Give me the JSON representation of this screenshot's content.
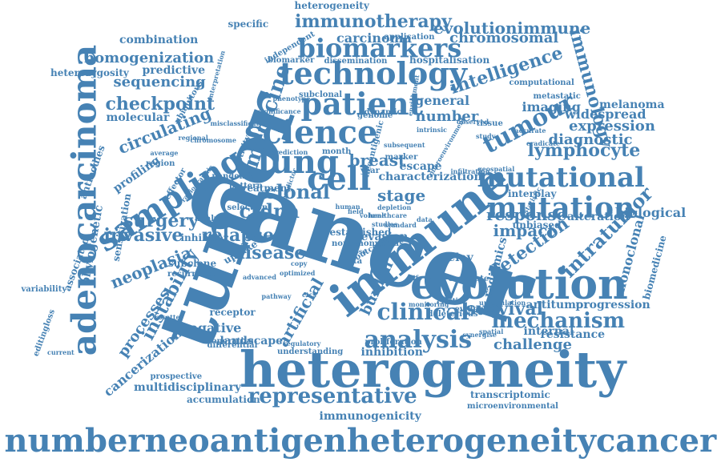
{
  "palette": {
    "word": "#4682b4",
    "background": "#ffffff"
  },
  "words": [
    {
      "text": "cancer",
      "rot": 18
    },
    {
      "text": "heterogeneity",
      "rot": 0
    },
    {
      "text": "tumor",
      "rot": -70
    },
    {
      "text": "immune",
      "rot": -38
    },
    {
      "text": "evolution",
      "rot": 0
    },
    {
      "text": "adenocarcinoma",
      "rot": -90
    },
    {
      "text": "numberneoantigenheterogeneitycancer",
      "rot": 0
    },
    {
      "text": "science",
      "rot": 0
    },
    {
      "text": "patient",
      "rot": 0
    },
    {
      "text": "technology",
      "rot": 0
    },
    {
      "text": "lung",
      "rot": 0
    },
    {
      "text": "cell",
      "rot": 0
    },
    {
      "text": "mutation",
      "rot": 0
    },
    {
      "text": "mutational",
      "rot": 0
    },
    {
      "text": "tumour",
      "rot": -28
    },
    {
      "text": "sampling",
      "rot": -32
    },
    {
      "text": "biomarkers",
      "rot": 0
    },
    {
      "text": "representative",
      "rot": 0
    },
    {
      "text": "analysis",
      "rot": 0
    },
    {
      "text": "clinical",
      "rot": 0
    },
    {
      "text": "immunotherapy",
      "rot": 0
    },
    {
      "text": "instability",
      "rot": -62
    },
    {
      "text": "medicine",
      "rot": -72
    },
    {
      "text": "immunology",
      "rot": 75
    },
    {
      "text": "mechanism",
      "rot": 0
    },
    {
      "text": "survival",
      "rot": 0
    },
    {
      "text": "circulating",
      "rot": -22
    },
    {
      "text": "checkpoint",
      "rot": 0
    },
    {
      "text": "evolutionimmune",
      "rot": 0
    },
    {
      "text": "chromosomal",
      "rot": 0
    },
    {
      "text": "carcinoma",
      "rot": 0
    },
    {
      "text": "homogenization",
      "rot": 0
    },
    {
      "text": "sequencing",
      "rot": 0
    },
    {
      "text": "intelligence",
      "rot": -18
    },
    {
      "text": "invasive",
      "rot": 0
    },
    {
      "text": "relapse",
      "rot": 0
    },
    {
      "text": "ctdna",
      "rot": 0
    },
    {
      "text": "clonal",
      "rot": 0
    },
    {
      "text": "stage",
      "rot": 0
    },
    {
      "text": "breast",
      "rot": 0
    },
    {
      "text": "surgery",
      "rot": 0
    },
    {
      "text": "neoplasia",
      "rot": -22
    },
    {
      "text": "disease",
      "rot": 0
    },
    {
      "text": "response",
      "rot": 0
    },
    {
      "text": "impact",
      "rot": 0
    },
    {
      "text": "detection",
      "rot": -35
    },
    {
      "text": "intratumor",
      "rot": -45
    },
    {
      "text": "lymphocyte",
      "rot": 0
    },
    {
      "text": "diagnostic",
      "rot": 0
    },
    {
      "text": "expression",
      "rot": 0
    },
    {
      "text": "widespread",
      "rot": 0
    },
    {
      "text": "melanoma",
      "rot": 0
    },
    {
      "text": "imaging",
      "rot": 0
    },
    {
      "text": "general",
      "rot": 0
    },
    {
      "text": "number",
      "rot": 0
    },
    {
      "text": "burden",
      "rot": -65
    },
    {
      "text": "artificial",
      "rot": -60
    },
    {
      "text": "processes",
      "rot": -55
    },
    {
      "text": "cancerization",
      "rot": -40
    },
    {
      "text": "negative",
      "rot": 0
    },
    {
      "text": "challenge",
      "rot": 0
    },
    {
      "text": "inhibition",
      "rot": 0
    },
    {
      "text": "resistance",
      "rot": 0
    },
    {
      "text": "internal",
      "rot": 0
    },
    {
      "text": "antitumor",
      "rot": 0
    },
    {
      "text": "progression",
      "rot": 0
    },
    {
      "text": "multidisciplinary",
      "rot": 0
    },
    {
      "text": "accumulation",
      "rot": 0
    },
    {
      "text": "immunogenicity",
      "rot": 0
    },
    {
      "text": "transcriptomic",
      "rot": 0
    },
    {
      "text": "microenvironmental",
      "rot": 0
    },
    {
      "text": "heterogeneity",
      "rot": 0
    },
    {
      "text": "combination",
      "rot": 0
    },
    {
      "text": "predictive",
      "rot": 0
    },
    {
      "text": "heterozygosity",
      "rot": 0
    },
    {
      "text": "molecular",
      "rot": 0
    },
    {
      "text": "profiling",
      "rot": -35
    },
    {
      "text": "antibodies",
      "rot": -70
    },
    {
      "text": "phylogenetic",
      "rot": -80
    },
    {
      "text": "associated",
      "rot": -70
    },
    {
      "text": "sensitization",
      "rot": -80
    },
    {
      "text": "inhibitor",
      "rot": 0
    },
    {
      "text": "subclone",
      "rot": 0
    },
    {
      "text": "recurrence",
      "rot": 0
    },
    {
      "text": "interplay",
      "rot": 0
    },
    {
      "text": "alteration",
      "rot": 0
    },
    {
      "text": "biological",
      "rot": 0
    },
    {
      "text": "monoclonal",
      "rot": -75
    },
    {
      "text": "biomedicine",
      "rot": -75
    },
    {
      "text": "characterization",
      "rot": 0
    },
    {
      "text": "escape",
      "rot": 0
    },
    {
      "text": "evasion",
      "rot": 0
    },
    {
      "text": "delay",
      "rot": 0
    },
    {
      "text": "uptake",
      "rot": -30
    },
    {
      "text": "analyse",
      "rot": 0
    },
    {
      "text": "marker",
      "rot": 0
    },
    {
      "text": "specific",
      "rot": 0
    },
    {
      "text": "independent",
      "rot": -30
    },
    {
      "text": "radiomics",
      "rot": -75
    },
    {
      "text": "emaciate",
      "rot": 0
    },
    {
      "text": "unbiased",
      "rot": 0
    },
    {
      "text": "evidence",
      "rot": 0
    },
    {
      "text": "deleterious",
      "rot": 0
    },
    {
      "text": "landscape",
      "rot": 0
    },
    {
      "text": "receptor",
      "rot": 0
    },
    {
      "text": "operative",
      "rot": 0
    },
    {
      "text": "differential",
      "rot": 0
    },
    {
      "text": "prospective",
      "rot": 0
    },
    {
      "text": "understanding",
      "rot": 0
    },
    {
      "text": "proliferation",
      "rot": 0
    },
    {
      "text": "variability",
      "rot": 0
    },
    {
      "text": "editingloss",
      "rot": -70
    },
    {
      "text": "neoantigenic",
      "rot": -75
    },
    {
      "text": "year",
      "rot": 0
    },
    {
      "text": "month",
      "rot": 0
    },
    {
      "text": "genome",
      "rot": 0
    },
    {
      "text": "dynamic",
      "rot": 0
    },
    {
      "text": "subclonal",
      "rot": 0
    },
    {
      "text": "application",
      "rot": 0
    },
    {
      "text": "biomarker",
      "rot": 0
    },
    {
      "text": "dissemination",
      "rot": 0
    },
    {
      "text": "hospitalisation",
      "rot": 0
    },
    {
      "text": "computational",
      "rot": 0
    },
    {
      "text": "metastatic",
      "rot": 0
    },
    {
      "text": "interpretation",
      "rot": -75
    },
    {
      "text": "ubiquitous",
      "rot": -60
    },
    {
      "text": "misclassification",
      "rot": 0
    },
    {
      "text": "pandemic",
      "rot": 0
    },
    {
      "text": "treatment",
      "rot": 0
    },
    {
      "text": "pattern",
      "rot": 0
    },
    {
      "text": "region",
      "rot": 0
    },
    {
      "text": "effector",
      "rot": -60
    },
    {
      "text": "activity",
      "rot": -70
    },
    {
      "text": "predictor",
      "rot": -70
    },
    {
      "text": "geospatial",
      "rot": 0
    },
    {
      "text": "tissue",
      "rot": 0
    },
    {
      "text": "study",
      "rot": 0
    },
    {
      "text": "selection",
      "rot": 0
    },
    {
      "text": "established",
      "rot": 0
    },
    {
      "text": "nonsynonymous",
      "rot": 0
    },
    {
      "text": "outcome",
      "rot": -30
    },
    {
      "text": "loss",
      "rot": 0
    },
    {
      "text": "meta",
      "rot": 0
    },
    {
      "text": "ratio",
      "rot": 0
    },
    {
      "text": "copy",
      "rot": 0
    },
    {
      "text": "studies",
      "rot": 0
    },
    {
      "text": "volume",
      "rot": 0
    },
    {
      "text": "healthcare",
      "rot": 0
    },
    {
      "text": "field",
      "rot": 0
    },
    {
      "text": "data",
      "rot": 0
    },
    {
      "text": "cxcl",
      "rot": 0
    },
    {
      "text": "ctcs",
      "rot": 0
    },
    {
      "text": "life",
      "rot": 0
    },
    {
      "text": "spatial",
      "rot": 0
    },
    {
      "text": "standard",
      "rot": 0
    },
    {
      "text": "depletion",
      "rot": 0
    },
    {
      "text": "statistic",
      "rot": -60
    },
    {
      "text": "infiltrating",
      "rot": 0
    },
    {
      "text": "synergise",
      "rot": 0
    },
    {
      "text": "advanced",
      "rot": 0
    },
    {
      "text": "optimized",
      "rot": 0
    },
    {
      "text": "rosette",
      "rot": 0
    },
    {
      "text": "current",
      "rot": 0
    },
    {
      "text": "human",
      "rot": 0
    },
    {
      "text": "subsequent",
      "rot": 0
    },
    {
      "text": "prediction",
      "rot": 0
    },
    {
      "text": "chromosome",
      "rot": 0
    },
    {
      "text": "regional",
      "rot": 0
    },
    {
      "text": "average",
      "rot": 0
    },
    {
      "text": "radiographic",
      "rot": -50
    },
    {
      "text": "microenvironment",
      "rot": -60
    },
    {
      "text": "intrinsic",
      "rot": 0
    },
    {
      "text": "observed",
      "rot": 0
    },
    {
      "text": "accurate",
      "rot": 0
    },
    {
      "text": "eradicate",
      "rot": 0
    },
    {
      "text": "significance",
      "rot": 0
    },
    {
      "text": "phenotype",
      "rot": 0
    },
    {
      "text": "enrichment",
      "rot": -80
    },
    {
      "text": "pathway",
      "rot": 0
    },
    {
      "text": "regulatory",
      "rot": 0
    },
    {
      "text": "monitoring",
      "rot": 0
    },
    {
      "text": "upregulation",
      "rot": 0
    },
    {
      "text": "correlation",
      "rot": 0
    },
    {
      "text": "learning",
      "rot": -60
    },
    {
      "text": "illumination",
      "rot": -70
    },
    {
      "text": "approach",
      "rot": 0
    },
    {
      "text": "mortality",
      "rot": 0
    },
    {
      "text": "presentation",
      "rot": 0
    },
    {
      "text": "mutability",
      "rot": 0
    },
    {
      "text": "assessment",
      "rot": 0
    }
  ]
}
